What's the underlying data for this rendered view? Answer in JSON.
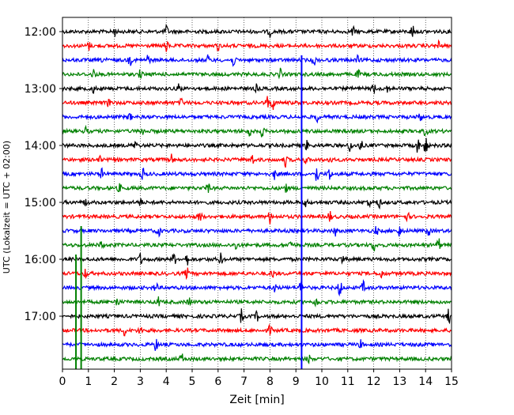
{
  "chart_data": {
    "type": "line",
    "title": "",
    "xlabel": "Zeit  [min]",
    "ylabel": "UTC (Lokalzeit = UTC + 02:00)",
    "xlim": [
      0,
      15
    ],
    "x_ticks": [
      "0",
      "1",
      "2",
      "3",
      "4",
      "5",
      "6",
      "7",
      "8",
      "9",
      "10",
      "11",
      "12",
      "13",
      "14",
      "15"
    ],
    "y_ticks": [
      {
        "label": "12:00",
        "trace": 0
      },
      {
        "label": "13:00",
        "trace": 4
      },
      {
        "label": "14:00",
        "trace": 8
      },
      {
        "label": "15:00",
        "trace": 12
      },
      {
        "label": "16:00",
        "trace": 16
      },
      {
        "label": "17:00",
        "trace": 20
      }
    ],
    "grid": "vertical dotted at each minute",
    "trace_interval_minutes": 15,
    "trace_colors": [
      "#000000",
      "#ff0000",
      "#0000ff",
      "#008000"
    ],
    "traces": [
      {
        "start": "12:00",
        "bursts": [
          [
            2.0,
            6
          ],
          [
            4.0,
            8
          ],
          [
            8.0,
            6
          ],
          [
            11.2,
            6
          ],
          [
            13.5,
            9
          ]
        ]
      },
      {
        "start": "12:15",
        "bursts": [
          [
            1.0,
            6
          ],
          [
            4.0,
            9
          ],
          [
            6.0,
            5
          ],
          [
            14.5,
            6
          ]
        ]
      },
      {
        "start": "12:30",
        "bursts": [
          [
            1.6,
            7
          ],
          [
            2.6,
            6
          ],
          [
            3.3,
            7
          ],
          [
            5.6,
            5
          ],
          [
            6.6,
            8
          ],
          [
            9.7,
            6
          ],
          [
            11.4,
            5
          ]
        ]
      },
      {
        "start": "12:45",
        "bursts": [
          [
            1.2,
            6
          ],
          [
            3.0,
            5
          ],
          [
            8.4,
            6
          ],
          [
            11.4,
            5
          ]
        ]
      },
      {
        "start": "13:00",
        "bursts": [
          [
            1.2,
            6
          ],
          [
            4.5,
            7
          ],
          [
            7.5,
            5
          ],
          [
            12.0,
            7
          ],
          [
            12.5,
            6
          ]
        ]
      },
      {
        "start": "13:15",
        "bursts": [
          [
            1.8,
            6
          ],
          [
            4.6,
            6
          ],
          [
            7.9,
            8
          ],
          [
            8.1,
            9
          ]
        ]
      },
      {
        "start": "13:30",
        "bursts": [
          [
            2.6,
            5
          ],
          [
            9.8,
            6
          ],
          [
            13.8,
            5
          ]
        ]
      },
      {
        "start": "13:45",
        "bursts": [
          [
            0.9,
            5
          ],
          [
            3.1,
            5
          ],
          [
            7.2,
            8
          ],
          [
            7.7,
            7
          ],
          [
            14.0,
            7
          ]
        ]
      },
      {
        "start": "14:00",
        "bursts": [
          [
            2.8,
            5
          ],
          [
            9.4,
            6
          ],
          [
            11.1,
            8
          ],
          [
            11.5,
            7
          ],
          [
            13.7,
            9
          ],
          [
            14.0,
            12
          ]
        ]
      },
      {
        "start": "14:15",
        "bursts": [
          [
            1.4,
            7
          ],
          [
            4.2,
            6
          ],
          [
            7.3,
            7
          ],
          [
            8.6,
            8
          ],
          [
            9.4,
            5
          ],
          [
            10.3,
            5
          ]
        ]
      },
      {
        "start": "14:30",
        "bursts": [
          [
            1.5,
            6
          ],
          [
            3.1,
            7
          ],
          [
            8.2,
            8
          ],
          [
            9.8,
            14
          ],
          [
            10.3,
            10
          ]
        ]
      },
      {
        "start": "14:45",
        "bursts": [
          [
            2.2,
            5
          ],
          [
            5.6,
            7
          ],
          [
            8.6,
            6
          ]
        ]
      },
      {
        "start": "15:00",
        "bursts": [
          [
            0.9,
            5
          ],
          [
            3.0,
            6
          ],
          [
            9.4,
            5
          ],
          [
            11.8,
            6
          ],
          [
            12.2,
            7
          ]
        ]
      },
      {
        "start": "15:15",
        "bursts": [
          [
            5.3,
            9
          ],
          [
            8.0,
            8
          ],
          [
            10.3,
            7
          ],
          [
            13.3,
            5
          ]
        ]
      },
      {
        "start": "15:30",
        "bursts": [
          [
            3.7,
            8
          ],
          [
            10.5,
            6
          ],
          [
            12.1,
            6
          ],
          [
            13.0,
            7
          ],
          [
            14.1,
            7
          ]
        ]
      },
      {
        "start": "15:45",
        "bursts": [
          [
            1.5,
            5
          ],
          [
            6.7,
            6
          ],
          [
            8.8,
            7
          ],
          [
            12.0,
            8
          ],
          [
            14.5,
            9
          ]
        ]
      },
      {
        "start": "16:00",
        "bursts": [
          [
            3.0,
            7
          ],
          [
            4.3,
            8
          ],
          [
            4.8,
            7
          ],
          [
            6.1,
            7
          ],
          [
            10.8,
            6
          ]
        ]
      },
      {
        "start": "16:15",
        "bursts": [
          [
            0.9,
            6
          ],
          [
            4.8,
            7
          ],
          [
            8.1,
            6
          ],
          [
            12.3,
            6
          ]
        ]
      },
      {
        "start": "16:30",
        "bursts": [
          [
            3.6,
            7
          ],
          [
            8.2,
            6
          ],
          [
            9.2,
            9
          ],
          [
            10.7,
            13
          ],
          [
            11.6,
            7
          ]
        ]
      },
      {
        "start": "16:45",
        "bursts": [
          [
            2.1,
            8
          ],
          [
            3.7,
            6
          ],
          [
            4.9,
            6
          ],
          [
            9.8,
            7
          ]
        ]
      },
      {
        "start": "17:00",
        "bursts": [
          [
            6.9,
            8
          ],
          [
            7.5,
            6
          ],
          [
            14.9,
            9
          ]
        ]
      },
      {
        "start": "17:15",
        "bursts": [
          [
            2.4,
            6
          ],
          [
            3.0,
            6
          ],
          [
            8.0,
            6
          ]
        ]
      },
      {
        "start": "17:30",
        "bursts": [
          [
            3.6,
            8
          ],
          [
            11.5,
            5
          ]
        ]
      },
      {
        "start": "17:45",
        "bursts": [
          [
            4.6,
            6
          ],
          [
            9.5,
            5
          ]
        ]
      }
    ],
    "vertical_spikes": [
      {
        "trace": 2,
        "x": 9.22,
        "color": "#0000ff",
        "extent": "to bottom"
      },
      {
        "trace": 16,
        "x": 0.52,
        "color": "#008000",
        "extent": "to bottom"
      },
      {
        "trace": 14,
        "x": 0.72,
        "color": "#008000",
        "extent": "to bottom"
      }
    ]
  }
}
